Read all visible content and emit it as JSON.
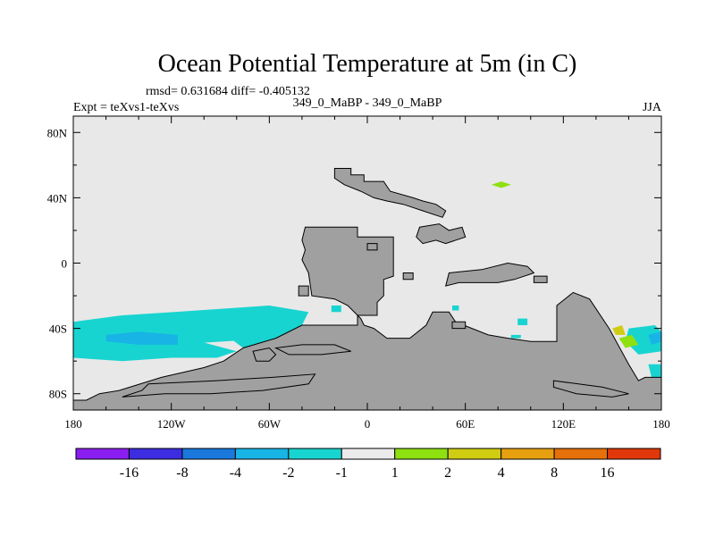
{
  "chart_data": {
    "type": "heatmap",
    "title": "Ocean Potential Temperature at 5m (in C)",
    "stats": "rmsd= 0.631684  diff= -0.405132",
    "subtitle_left": "Expt = teXvs1-teXvs",
    "subtitle_center": "349_0_MaBP - 349_0_MaBP",
    "subtitle_right": "JJA",
    "x_ticks": [
      {
        "value": -180,
        "label": "180"
      },
      {
        "value": -120,
        "label": "120W"
      },
      {
        "value": -60,
        "label": "60W"
      },
      {
        "value": 0,
        "label": "0"
      },
      {
        "value": 60,
        "label": "60E"
      },
      {
        "value": 120,
        "label": "120E"
      },
      {
        "value": 180,
        "label": "180"
      }
    ],
    "y_ticks": [
      {
        "value": 80,
        "label": "80N"
      },
      {
        "value": 40,
        "label": "40N"
      },
      {
        "value": 0,
        "label": "0"
      },
      {
        "value": -40,
        "label": "40S"
      },
      {
        "value": -80,
        "label": "80S"
      }
    ],
    "xlim": [
      -180,
      180
    ],
    "ylim": [
      -90,
      90
    ],
    "colorbar": {
      "colors": [
        "#8a1ef0",
        "#3c2ee0",
        "#1a78dc",
        "#18b4e6",
        "#18d4d0",
        "#ebebeb",
        "#8ee010",
        "#d0cc12",
        "#e6a010",
        "#e6700a",
        "#e0380a"
      ],
      "labels": [
        "-16",
        "-8",
        "-4",
        "-2",
        "-1",
        "1",
        "2",
        "4",
        "8",
        "16"
      ]
    },
    "background_color": "#e8e8e8",
    "land_color": "#a0a0a0",
    "land": [
      [
        [
          -20,
          58
        ],
        [
          -10,
          58
        ],
        [
          -10,
          54
        ],
        [
          -2,
          54
        ],
        [
          -2,
          50
        ],
        [
          10,
          50
        ],
        [
          14,
          44
        ],
        [
          28,
          40
        ],
        [
          34,
          38
        ],
        [
          42,
          36
        ],
        [
          48,
          32
        ],
        [
          46,
          28
        ],
        [
          34,
          32
        ],
        [
          22,
          36
        ],
        [
          12,
          38
        ],
        [
          4,
          40
        ],
        [
          -4,
          44
        ],
        [
          -14,
          48
        ],
        [
          -20,
          52
        ]
      ],
      [
        [
          -38,
          22
        ],
        [
          -6,
          22
        ],
        [
          -6,
          16
        ],
        [
          16,
          16
        ],
        [
          16,
          -8
        ],
        [
          10,
          -10
        ],
        [
          10,
          -20
        ],
        [
          6,
          -24
        ],
        [
          6,
          -32
        ],
        [
          -6,
          -32
        ],
        [
          -6,
          -38
        ],
        [
          -40,
          -38
        ],
        [
          -56,
          -46
        ],
        [
          -76,
          -52
        ],
        [
          -88,
          -60
        ],
        [
          -100,
          -64
        ],
        [
          -126,
          -70
        ],
        [
          -152,
          -78
        ],
        [
          -164,
          -80
        ],
        [
          -172,
          -84
        ],
        [
          -180,
          -84
        ],
        [
          -180,
          -90
        ],
        [
          180,
          -90
        ],
        [
          180,
          -70
        ],
        [
          170,
          -70
        ],
        [
          166,
          -72
        ],
        [
          160,
          -62
        ],
        [
          148,
          -40
        ],
        [
          136,
          -22
        ],
        [
          126,
          -18
        ],
        [
          116,
          -26
        ],
        [
          116,
          -48
        ],
        [
          100,
          -48
        ],
        [
          86,
          -46
        ],
        [
          74,
          -44
        ],
        [
          64,
          -40
        ],
        [
          54,
          -36
        ],
        [
          50,
          -30
        ],
        [
          40,
          -30
        ],
        [
          36,
          -38
        ],
        [
          26,
          -46
        ],
        [
          12,
          -46
        ],
        [
          4,
          -40
        ],
        [
          -2,
          -38
        ],
        [
          -4,
          -34
        ],
        [
          -12,
          -26
        ],
        [
          -20,
          -22
        ],
        [
          -34,
          -20
        ],
        [
          -36,
          -6
        ],
        [
          -40,
          2
        ],
        [
          -38,
          8
        ],
        [
          -40,
          14
        ]
      ],
      [
        [
          -134,
          -74
        ],
        [
          -92,
          -72
        ],
        [
          -58,
          -70
        ],
        [
          -32,
          -68
        ],
        [
          -36,
          -74
        ],
        [
          -64,
          -78
        ],
        [
          -96,
          -80
        ],
        [
          -124,
          -80
        ],
        [
          -150,
          -82
        ],
        [
          -138,
          -78
        ]
      ],
      [
        [
          -40,
          -50
        ],
        [
          -20,
          -50
        ],
        [
          -10,
          -54
        ],
        [
          -28,
          -56
        ],
        [
          -48,
          -56
        ],
        [
          -56,
          -52
        ]
      ],
      [
        [
          114,
          -72
        ],
        [
          144,
          -76
        ],
        [
          160,
          -80
        ],
        [
          150,
          -82
        ],
        [
          128,
          -80
        ],
        [
          114,
          -76
        ]
      ],
      [
        [
          -70,
          -54
        ],
        [
          -60,
          -52
        ],
        [
          -56,
          -56
        ],
        [
          -60,
          -60
        ],
        [
          -68,
          -60
        ]
      ],
      [
        [
          32,
          22
        ],
        [
          44,
          24
        ],
        [
          50,
          20
        ],
        [
          58,
          22
        ],
        [
          60,
          16
        ],
        [
          48,
          12
        ],
        [
          42,
          14
        ],
        [
          34,
          12
        ],
        [
          30,
          16
        ]
      ],
      [
        [
          50,
          -6
        ],
        [
          70,
          -4
        ],
        [
          86,
          0
        ],
        [
          98,
          -2
        ],
        [
          102,
          -6
        ],
        [
          90,
          -10
        ],
        [
          80,
          -12
        ],
        [
          68,
          -12
        ],
        [
          56,
          -12
        ],
        [
          48,
          -14
        ]
      ],
      [
        [
          -42,
          -14
        ],
        [
          -36,
          -14
        ],
        [
          -36,
          -20
        ],
        [
          -42,
          -20
        ]
      ],
      [
        [
          52,
          -36
        ],
        [
          60,
          -36
        ],
        [
          60,
          -40
        ],
        [
          52,
          -40
        ]
      ],
      [
        [
          102,
          -8
        ],
        [
          110,
          -8
        ],
        [
          110,
          -12
        ],
        [
          102,
          -12
        ]
      ],
      [
        [
          22,
          -6
        ],
        [
          28,
          -6
        ],
        [
          28,
          -10
        ],
        [
          22,
          -10
        ]
      ],
      [
        [
          0,
          12
        ],
        [
          6,
          12
        ],
        [
          6,
          8
        ],
        [
          0,
          8
        ]
      ]
    ],
    "anomalies": [
      {
        "value": -1.5,
        "points": [
          [
            -180,
            -36
          ],
          [
            -150,
            -32
          ],
          [
            -118,
            -30
          ],
          [
            -90,
            -28
          ],
          [
            -60,
            -26
          ],
          [
            -36,
            -30
          ],
          [
            -40,
            -38
          ],
          [
            -56,
            -46
          ],
          [
            -88,
            -48
          ],
          [
            -120,
            -50
          ],
          [
            -150,
            -56
          ],
          [
            -180,
            -54
          ]
        ]
      },
      {
        "value": -1.5,
        "points": [
          [
            -180,
            -44
          ],
          [
            -140,
            -46
          ],
          [
            -110,
            -46
          ],
          [
            -80,
            -54
          ],
          [
            -92,
            -58
          ],
          [
            -120,
            -58
          ],
          [
            -150,
            -60
          ],
          [
            -180,
            -58
          ]
        ]
      },
      {
        "value": -1.5,
        "points": [
          [
            -80,
            -36
          ],
          [
            -60,
            -34
          ],
          [
            -48,
            -36
          ],
          [
            -58,
            -52
          ],
          [
            -76,
            -52
          ],
          [
            -84,
            -46
          ]
        ]
      },
      {
        "value": -1.5,
        "points": [
          [
            160,
            -40
          ],
          [
            176,
            -38
          ],
          [
            180,
            -42
          ],
          [
            180,
            -54
          ],
          [
            166,
            -56
          ],
          [
            158,
            -48
          ]
        ]
      },
      {
        "value": -1.5,
        "points": [
          [
            172,
            -62
          ],
          [
            180,
            -62
          ],
          [
            180,
            -70
          ],
          [
            174,
            -70
          ]
        ]
      },
      {
        "value": -1.5,
        "points": [
          [
            -22,
            -26
          ],
          [
            -16,
            -26
          ],
          [
            -16,
            -30
          ],
          [
            -22,
            -30
          ]
        ]
      },
      {
        "value": -1.5,
        "points": [
          [
            92,
            -34
          ],
          [
            98,
            -34
          ],
          [
            98,
            -38
          ],
          [
            92,
            -38
          ]
        ]
      },
      {
        "value": -1.5,
        "points": [
          [
            52,
            -26
          ],
          [
            56,
            -26
          ],
          [
            56,
            -29
          ],
          [
            52,
            -29
          ]
        ]
      },
      {
        "value": -1.5,
        "points": [
          [
            42,
            -40
          ],
          [
            48,
            -40
          ],
          [
            48,
            -44
          ],
          [
            42,
            -44
          ]
        ]
      },
      {
        "value": -1.5,
        "points": [
          [
            88,
            -44
          ],
          [
            94,
            -44
          ],
          [
            94,
            -46
          ],
          [
            88,
            -46
          ]
        ]
      },
      {
        "value": -3,
        "points": [
          [
            -160,
            -44
          ],
          [
            -140,
            -42
          ],
          [
            -116,
            -44
          ],
          [
            -116,
            -50
          ],
          [
            -140,
            -50
          ],
          [
            -160,
            -48
          ]
        ]
      },
      {
        "value": -3,
        "points": [
          [
            172,
            -44
          ],
          [
            180,
            -42
          ],
          [
            180,
            -48
          ],
          [
            174,
            -50
          ]
        ]
      },
      {
        "value": 1.5,
        "points": [
          [
            76,
            48
          ],
          [
            82,
            50
          ],
          [
            88,
            48
          ],
          [
            82,
            46
          ]
        ]
      },
      {
        "value": 3,
        "points": [
          [
            150,
            -40
          ],
          [
            156,
            -38
          ],
          [
            158,
            -44
          ],
          [
            152,
            -44
          ]
        ]
      },
      {
        "value": 1.5,
        "points": [
          [
            154,
            -46
          ],
          [
            162,
            -44
          ],
          [
            166,
            -50
          ],
          [
            158,
            -52
          ]
        ]
      }
    ]
  }
}
